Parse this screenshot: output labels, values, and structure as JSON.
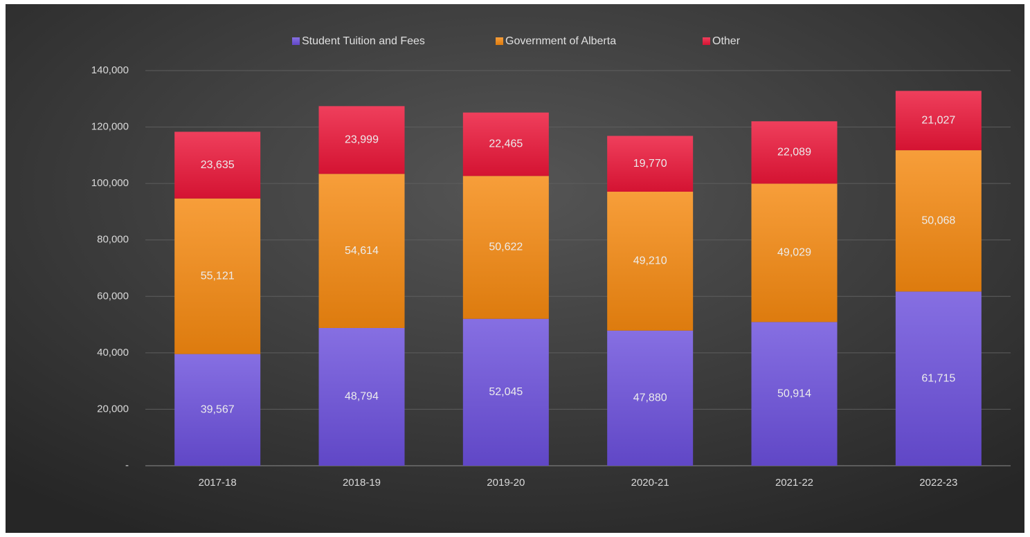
{
  "chart_data": {
    "type": "stacked_bar",
    "categories": [
      "2017-18",
      "2018-19",
      "2019-20",
      "2020-21",
      "2021-22",
      "2022-23"
    ],
    "series": [
      {
        "name": "Student Tuition and Fees",
        "color": "#6b4fdc",
        "values": [
          39567,
          48794,
          52045,
          47880,
          50914,
          61715
        ],
        "value_labels": [
          "39,567",
          "48,794",
          "52,045",
          "47,880",
          "50,914",
          "61,715"
        ]
      },
      {
        "name": "Government of Alberta",
        "color": "#f5890f",
        "values": [
          55121,
          54614,
          50622,
          49210,
          49029,
          50068
        ],
        "value_labels": [
          "55,121",
          "54,614",
          "50,622",
          "49,210",
          "49,029",
          "50,068"
        ]
      },
      {
        "name": "Other",
        "color": "#ec1538",
        "values": [
          23635,
          23999,
          22465,
          19770,
          22089,
          21027
        ],
        "value_labels": [
          "23,635",
          "23,999",
          "22,465",
          "19,770",
          "22,089",
          "21,027"
        ]
      }
    ],
    "ylim": [
      0,
      140000
    ],
    "yticks": [
      {
        "value": 0,
        "label": "-"
      },
      {
        "value": 20000,
        "label": "20,000"
      },
      {
        "value": 40000,
        "label": "40,000"
      },
      {
        "value": 60000,
        "label": "60,000"
      },
      {
        "value": 80000,
        "label": "80,000"
      },
      {
        "value": 100000,
        "label": "100,000"
      },
      {
        "value": 120000,
        "label": "120,000"
      },
      {
        "value": 140000,
        "label": "140,000"
      }
    ],
    "grid": true,
    "legend": "top"
  }
}
